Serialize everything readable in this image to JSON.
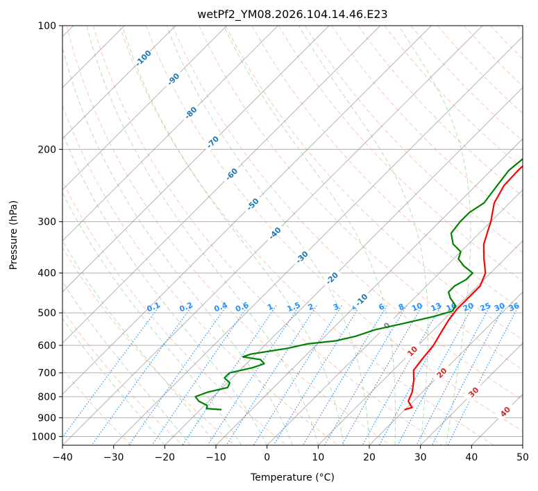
{
  "chart_data": {
    "type": "line",
    "title": "wetPf2_YM08.2026.104.14.46.E23",
    "xlabel": "Temperature (°C)",
    "ylabel": "Pressure (hPa)",
    "xlim": [
      -40,
      50
    ],
    "ylim": [
      1050,
      100
    ],
    "yscale": "log",
    "x_ticks": [
      -40,
      -30,
      -20,
      -10,
      0,
      10,
      20,
      30,
      40,
      50
    ],
    "y_ticks": [
      100,
      200,
      300,
      400,
      500,
      600,
      700,
      800,
      900,
      1000
    ],
    "grid": true,
    "skew_reference": "skewed isotherms at 45 degrees",
    "series": [
      {
        "name": "Temperature",
        "color": "#ff0000",
        "points": [
          {
            "p": 860,
            "t": 20
          },
          {
            "p": 850,
            "t": 21
          },
          {
            "p": 840,
            "t": 20.3
          },
          {
            "p": 820,
            "t": 19
          },
          {
            "p": 780,
            "t": 18
          },
          {
            "p": 730,
            "t": 16
          },
          {
            "p": 690,
            "t": 14
          },
          {
            "p": 650,
            "t": 13.5
          },
          {
            "p": 600,
            "t": 13
          },
          {
            "p": 560,
            "t": 12
          },
          {
            "p": 520,
            "t": 11
          },
          {
            "p": 490,
            "t": 10.5
          },
          {
            "p": 460,
            "t": 10.5
          },
          {
            "p": 430,
            "t": 10.5
          },
          {
            "p": 400,
            "t": 9
          },
          {
            "p": 370,
            "t": 6
          },
          {
            "p": 340,
            "t": 3
          },
          {
            "p": 300,
            "t": 0
          },
          {
            "p": 270,
            "t": -3
          },
          {
            "p": 245,
            "t": -4.5
          },
          {
            "p": 225,
            "t": -4.7
          },
          {
            "p": 210,
            "t": -4.5
          },
          {
            "p": 195,
            "t": -3
          },
          {
            "p": 180,
            "t": -1.5
          },
          {
            "p": 170,
            "t": 0.5
          },
          {
            "p": 160,
            "t": 4
          },
          {
            "p": 150,
            "t": 7.5
          },
          {
            "p": 140,
            "t": 10
          },
          {
            "p": 130,
            "t": 13
          },
          {
            "p": 120,
            "t": 15
          },
          {
            "p": 110,
            "t": 16.5
          },
          {
            "p": 104,
            "t": 17
          },
          {
            "p": 100,
            "t": 18.5
          }
        ]
      },
      {
        "name": "Dewpoint",
        "color": "#008000",
        "points": [
          {
            "p": 860,
            "t": -16
          },
          {
            "p": 855,
            "t": -19
          },
          {
            "p": 840,
            "t": -19.5
          },
          {
            "p": 820,
            "t": -22
          },
          {
            "p": 800,
            "t": -23.5
          },
          {
            "p": 780,
            "t": -22
          },
          {
            "p": 760,
            "t": -19
          },
          {
            "p": 740,
            "t": -19.5
          },
          {
            "p": 720,
            "t": -21.5
          },
          {
            "p": 700,
            "t": -21.5
          },
          {
            "p": 680,
            "t": -18
          },
          {
            "p": 665,
            "t": -16.5
          },
          {
            "p": 650,
            "t": -18
          },
          {
            "p": 640,
            "t": -22
          },
          {
            "p": 630,
            "t": -21
          },
          {
            "p": 610,
            "t": -15
          },
          {
            "p": 595,
            "t": -12
          },
          {
            "p": 585,
            "t": -7
          },
          {
            "p": 570,
            "t": -4
          },
          {
            "p": 550,
            "t": -1.5
          },
          {
            "p": 530,
            "t": 3
          },
          {
            "p": 510,
            "t": 7.5
          },
          {
            "p": 495,
            "t": 10
          },
          {
            "p": 480,
            "t": 9.5
          },
          {
            "p": 460,
            "t": 7
          },
          {
            "p": 445,
            "t": 5.5
          },
          {
            "p": 430,
            "t": 5.5
          },
          {
            "p": 415,
            "t": 6.5
          },
          {
            "p": 400,
            "t": 6.5
          },
          {
            "p": 385,
            "t": 3.5
          },
          {
            "p": 370,
            "t": 1
          },
          {
            "p": 355,
            "t": 0
          },
          {
            "p": 340,
            "t": -3
          },
          {
            "p": 320,
            "t": -5.5
          },
          {
            "p": 300,
            "t": -6
          },
          {
            "p": 285,
            "t": -6
          },
          {
            "p": 270,
            "t": -5
          },
          {
            "p": 255,
            "t": -5.5
          },
          {
            "p": 240,
            "t": -6
          },
          {
            "p": 225,
            "t": -6.5
          },
          {
            "p": 210,
            "t": -6
          },
          {
            "p": 195,
            "t": -6
          },
          {
            "p": 185,
            "t": -5.5
          },
          {
            "p": 175,
            "t": -8
          },
          {
            "p": 165,
            "t": -11.5
          },
          {
            "p": 160,
            "t": -11.5
          },
          {
            "p": 150,
            "t": -10.5
          },
          {
            "p": 140,
            "t": -9.5
          },
          {
            "p": 130,
            "t": -8
          },
          {
            "p": 120,
            "t": -6.5
          },
          {
            "p": 110,
            "t": -4
          },
          {
            "p": 104,
            "t": -2
          },
          {
            "p": 100,
            "t": 0
          }
        ]
      }
    ],
    "isotherm_labels": [
      {
        "text": "-100",
        "t": -100,
        "p": 120
      },
      {
        "text": "-90",
        "t": -90,
        "p": 135
      },
      {
        "text": "-80",
        "t": -80,
        "p": 163
      },
      {
        "text": "-70",
        "t": -70,
        "p": 192
      },
      {
        "text": "-60",
        "t": -60,
        "p": 230
      },
      {
        "text": "-50",
        "t": -50,
        "p": 272
      },
      {
        "text": "-40",
        "t": -40,
        "p": 320
      },
      {
        "text": "-30",
        "t": -30,
        "p": 366
      },
      {
        "text": "-20",
        "t": -20,
        "p": 412
      },
      {
        "text": "-10",
        "t": -10,
        "p": 465
      },
      {
        "text": "0",
        "t": 0,
        "p": 537
      },
      {
        "text": "10",
        "t": 10,
        "p": 620
      },
      {
        "text": "20",
        "t": 20,
        "p": 700
      },
      {
        "text": "30",
        "t": 30,
        "p": 780
      },
      {
        "text": "40",
        "t": 40,
        "p": 870
      }
    ],
    "mixing_ratio_labels": [
      "0.1",
      "0.2",
      "0.4",
      "0.6",
      "1",
      "1.5",
      "2",
      "3",
      "4",
      "6",
      "8",
      "10",
      "13",
      "16",
      "20",
      "25",
      "30",
      "36"
    ],
    "colors": {
      "temperature": "#ff0000",
      "dewpoint": "#008000",
      "isotherm": "#808080",
      "dry_adiabat": "#ff7f50",
      "moist_adiabat": "#2ca02c",
      "mixing_ratio": "#1e90ff",
      "isotherm_label_cold": "#1f77b4",
      "isotherm_label_warm": "#d62728",
      "isotherm_label_zero": "#808080"
    }
  }
}
